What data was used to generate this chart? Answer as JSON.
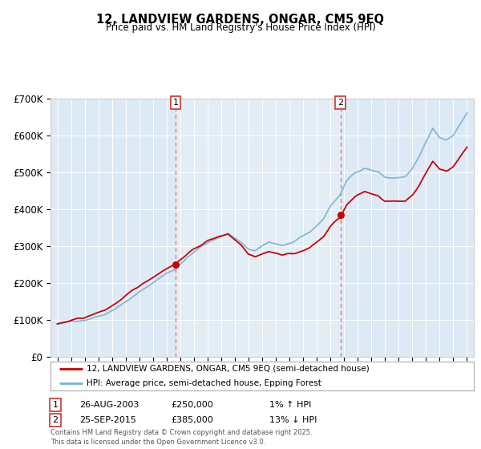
{
  "title": "12, LANDVIEW GARDENS, ONGAR, CM5 9EQ",
  "subtitle": "Price paid vs. HM Land Registry's House Price Index (HPI)",
  "legend_line1": "12, LANDVIEW GARDENS, ONGAR, CM5 9EQ (semi-detached house)",
  "legend_line2": "HPI: Average price, semi-detached house, Epping Forest",
  "footer": "Contains HM Land Registry data © Crown copyright and database right 2025.\nThis data is licensed under the Open Government Licence v3.0.",
  "sale1_label": "1",
  "sale1_date": "26-AUG-2003",
  "sale1_price": "£250,000",
  "sale1_pct": "1% ↑ HPI",
  "sale1_year": 2003.65,
  "sale1_value": 250000,
  "sale2_label": "2",
  "sale2_date": "25-SEP-2015",
  "sale2_price": "£385,000",
  "sale2_pct": "13% ↓ HPI",
  "sale2_year": 2015.73,
  "sale2_value": 385000,
  "hpi_color": "#7ab3d4",
  "price_color": "#cc0000",
  "vline_color": "#e87070",
  "plot_bg": "#ddeaf5",
  "ylim": [
    0,
    700000
  ],
  "yticks": [
    0,
    100000,
    200000,
    300000,
    400000,
    500000,
    600000,
    700000
  ],
  "ytick_labels": [
    "£0",
    "£100K",
    "£200K",
    "£300K",
    "£400K",
    "£500K",
    "£600K",
    "£700K"
  ],
  "xlim_start": 1994.5,
  "xlim_end": 2025.5
}
